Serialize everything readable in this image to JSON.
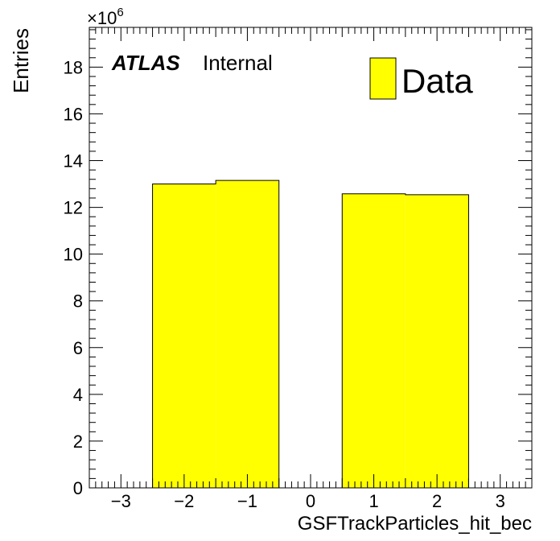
{
  "chart_data": {
    "type": "bar",
    "x_label": "GSFTrackParticles_hit_bec",
    "y_label": "Entries",
    "y_exponent_label": "×10",
    "y_exponent_power": "6",
    "x_ticks": [
      "−3",
      "−2",
      "−1",
      "0",
      "1",
      "2",
      "3"
    ],
    "y_ticks": [
      "0",
      "2",
      "4",
      "6",
      "8",
      "10",
      "12",
      "14",
      "16",
      "18"
    ],
    "xlim": [
      -3.5,
      3.5
    ],
    "ylim": [
      0,
      19.7
    ],
    "bins": [
      {
        "low": -2.5,
        "high": -1.5,
        "value": 13.0
      },
      {
        "low": -1.5,
        "high": -0.5,
        "value": 13.15
      },
      {
        "low": 0.5,
        "high": 1.5,
        "value": 12.58
      },
      {
        "low": 1.5,
        "high": 2.5,
        "value": 12.54
      }
    ],
    "series": [
      {
        "name": "Data",
        "color": "#ffff00"
      }
    ],
    "atlas_label": "ATLAS",
    "atlas_status": "Internal",
    "legend_position": "top-right"
  }
}
